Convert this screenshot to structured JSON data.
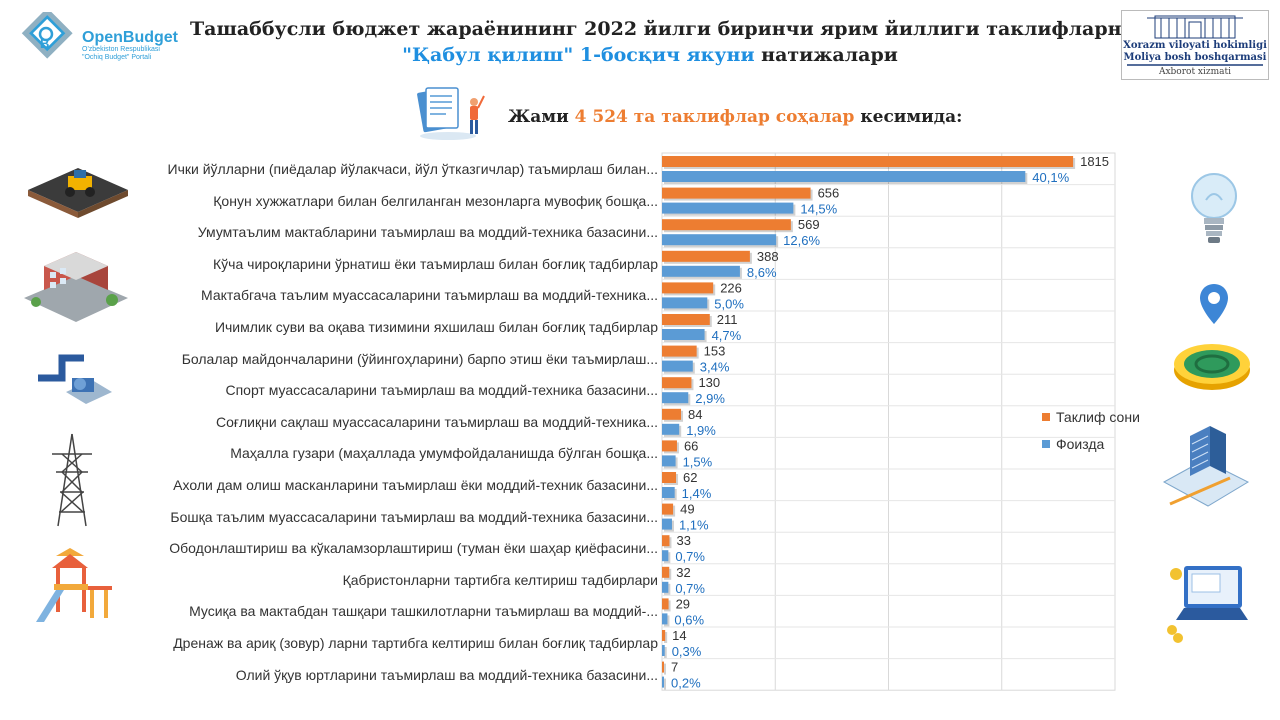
{
  "header": {
    "logo_name": "OpenBudget",
    "logo_sub_1": "O'zbekiston Respublikasi",
    "logo_sub_2": "\"Ochiq Budget\" Portali",
    "title_line1": "Ташаббусли бюджет жараёнининг 2022 йилги биринчи ярим йиллиги таклифларни",
    "title_line2_a": "\"Қабул қилиш\" 1-босқич якуни",
    "title_line2_b": " натижалари",
    "org_line1": "Xorazm viloyati hokimligi",
    "org_line2": "Moliya bosh boshqarmasi",
    "org_line3": "Axborot xizmati"
  },
  "subtitle": {
    "prefix": "Жами ",
    "highlight": "4 524 та таклифлар соҳалар",
    "suffix": " кесимида:"
  },
  "colors": {
    "orange": "#ed7d31",
    "blue": "#5b9bd5",
    "title_blue": "#1f8fe0"
  },
  "chart_data": {
    "type": "bar",
    "orientation": "horizontal",
    "categories": [
      "Ички йўлларни (пиёдалар йўлакчаси, йўл ўтказгичлар) таъмирлаш билан...",
      "Қонун хужжатлари билан белгиланган мезонларга мувофиқ бошқа...",
      "Умумтаълим мактабларини таъмирлаш ва моддий-техника базасини...",
      "Кўча чироқларини ўрнатиш ёки таъмирлаш билан боғлиқ тадбирлар",
      "Мактабгача таълим муассасаларини таъмирлаш ва моддий-техника...",
      "Ичимлик суви ва оқава тизимини яхшилаш билан боғлиқ тадбирлар",
      "Болалар майдончаларини (ўйингоҳларини) барпо этиш ёки таъмирлаш...",
      "Спорт муассасаларини таъмирлаш ва моддий-техника базасини...",
      "Соғлиқни сақлаш муассасаларини таъмирлаш ва моддий-техника...",
      "Маҳалла гузари (маҳаллада умумфойдаланишда бўлган бошқа...",
      "Ахоли дам олиш масканларини таъмирлаш ёки моддий-техник базасини...",
      "Бошқа таълим муассасаларини таъмирлаш ва моддий-техника базасини...",
      "Ободонлаштириш ва кўкаламзорлаштириш (туман ёки шаҳар қиёфасини...",
      "Қабристонларни тартибга келтириш тадбирлари",
      "Мусиқа ва мактабдан ташқари ташкилотларни таъмирлаш ва моддий-...",
      "Дренаж ва ариқ (зовур) ларни тартибга келтириш билан боғлиқ тадбирлар",
      "Олий ўқув юртларини таъмирлаш ва моддий-техника базасини..."
    ],
    "series": [
      {
        "name": "Таклиф сони",
        "values": [
          1815,
          656,
          569,
          388,
          226,
          211,
          153,
          130,
          84,
          66,
          62,
          49,
          33,
          32,
          29,
          14,
          7
        ],
        "labels": [
          "1815",
          "656",
          "569",
          "388",
          "226",
          "211",
          "153",
          "130",
          "84",
          "66",
          "62",
          "49",
          "33",
          "32",
          "29",
          "14",
          "7"
        ]
      },
      {
        "name": "Фоизда",
        "values": [
          40.1,
          14.5,
          12.6,
          8.6,
          5.0,
          4.7,
          3.4,
          2.9,
          1.9,
          1.5,
          1.4,
          1.1,
          0.7,
          0.7,
          0.6,
          0.3,
          0.2
        ],
        "labels": [
          "40,1%",
          "14,5%",
          "12,6%",
          "8,6%",
          "5,0%",
          "4,7%",
          "3,4%",
          "2,9%",
          "1,9%",
          "1,5%",
          "1,4%",
          "1,1%",
          "0,7%",
          "0,7%",
          "0,6%",
          "0,3%",
          "0,2%"
        ]
      }
    ],
    "xlim": [
      0,
      2000
    ],
    "grid": true,
    "legend_position": "right"
  }
}
